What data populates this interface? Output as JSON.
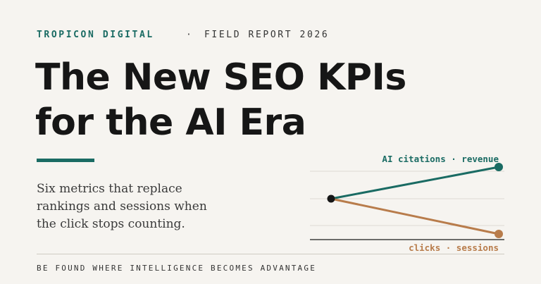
{
  "header": {
    "brand": "TROPICON DIGITAL",
    "separator": "·",
    "report": "FIELD REPORT 2026"
  },
  "headline": {
    "line1": "The New SEO KPIs",
    "line2": "for the AI Era"
  },
  "subtitle": {
    "line1": "Six metrics that replace",
    "line2": "rankings and sessions when",
    "line3": "the click stops counting."
  },
  "chart": {
    "up_label": "AI citations · revenue",
    "down_label": "clicks · sessions"
  },
  "footer": {
    "tagline": "BE FOUND WHERE INTELLIGENCE BECOMES ADVANTAGE"
  },
  "colors": {
    "background": "#f6f4f0",
    "accent_teal": "#1a6b63",
    "accent_orange": "#b87c4b",
    "ink": "#161616"
  }
}
